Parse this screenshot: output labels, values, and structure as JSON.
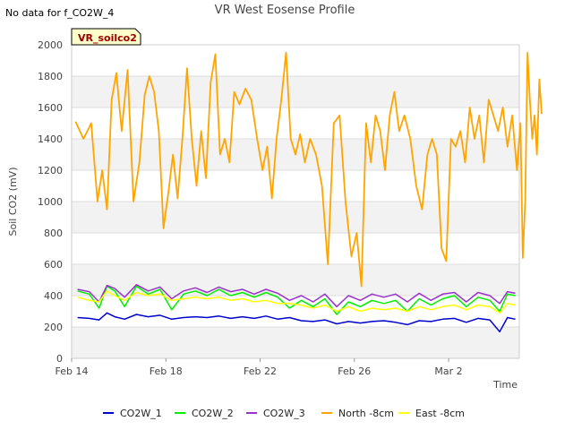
{
  "header": {
    "no_data_note": "No data for f_CO2W_4",
    "title": "VR West Eosense Profile"
  },
  "site_label": "VR_soilco2",
  "chart_data": {
    "type": "line",
    "title": "VR West Eosense Profile",
    "xlabel": "Time",
    "ylabel": "Soil CO2 (mV)",
    "xlim": [
      "2024-02-14",
      "2024-03-04"
    ],
    "ylim": [
      0,
      2000
    ],
    "x_ticks": [
      "Feb 14",
      "Feb 18",
      "Feb 22",
      "Feb 26",
      "Mar 2"
    ],
    "y_ticks": [
      0,
      200,
      400,
      600,
      800,
      1000,
      1200,
      1400,
      1600,
      1800,
      2000
    ],
    "grid": true,
    "legend_position": "bottom",
    "series": [
      {
        "name": "CO2W_1",
        "color": "#0000cc",
        "points": [
          [
            "2024-02-14",
            260
          ],
          [
            "2024-02-14",
            255
          ],
          [
            "2024-02-15",
            245
          ],
          [
            "2024-02-15",
            290
          ],
          [
            "2024-02-15",
            265
          ],
          [
            "2024-02-16",
            250
          ],
          [
            "2024-02-16",
            280
          ],
          [
            "2024-02-17",
            265
          ],
          [
            "2024-02-17",
            275
          ],
          [
            "2024-02-18",
            250
          ],
          [
            "2024-02-18",
            260
          ],
          [
            "2024-02-19",
            265
          ],
          [
            "2024-02-19",
            260
          ],
          [
            "2024-02-20",
            270
          ],
          [
            "2024-02-20",
            255
          ],
          [
            "2024-02-21",
            265
          ],
          [
            "2024-02-21",
            255
          ],
          [
            "2024-02-22",
            270
          ],
          [
            "2024-02-22",
            250
          ],
          [
            "2024-02-23",
            260
          ],
          [
            "2024-02-23",
            240
          ],
          [
            "2024-02-24",
            235
          ],
          [
            "2024-02-24",
            245
          ],
          [
            "2024-02-25",
            220
          ],
          [
            "2024-02-25",
            235
          ],
          [
            "2024-02-26",
            225
          ],
          [
            "2024-02-26",
            235
          ],
          [
            "2024-02-27",
            240
          ],
          [
            "2024-02-27",
            230
          ],
          [
            "2024-02-28",
            215
          ],
          [
            "2024-02-28",
            240
          ],
          [
            "2024-02-29",
            235
          ],
          [
            "2024-02-29",
            250
          ],
          [
            "2024-03-01",
            255
          ],
          [
            "2024-03-01",
            230
          ],
          [
            "2024-03-02",
            255
          ],
          [
            "2024-03-02",
            245
          ],
          [
            "2024-03-03",
            170
          ],
          [
            "2024-03-03",
            260
          ],
          [
            "2024-03-03",
            250
          ]
        ]
      },
      {
        "name": "CO2W_2",
        "color": "#00ee00",
        "points": [
          [
            "2024-02-14",
            430
          ],
          [
            "2024-02-14",
            410
          ],
          [
            "2024-02-15",
            320
          ],
          [
            "2024-02-15",
            460
          ],
          [
            "2024-02-15",
            430
          ],
          [
            "2024-02-16",
            330
          ],
          [
            "2024-02-16",
            460
          ],
          [
            "2024-02-17",
            410
          ],
          [
            "2024-02-17",
            440
          ],
          [
            "2024-02-18",
            310
          ],
          [
            "2024-02-18",
            410
          ],
          [
            "2024-02-19",
            430
          ],
          [
            "2024-02-19",
            400
          ],
          [
            "2024-02-20",
            440
          ],
          [
            "2024-02-20",
            400
          ],
          [
            "2024-02-21",
            420
          ],
          [
            "2024-02-21",
            390
          ],
          [
            "2024-02-22",
            420
          ],
          [
            "2024-02-22",
            390
          ],
          [
            "2024-02-23",
            320
          ],
          [
            "2024-02-23",
            370
          ],
          [
            "2024-02-24",
            330
          ],
          [
            "2024-02-24",
            380
          ],
          [
            "2024-02-25",
            280
          ],
          [
            "2024-02-25",
            360
          ],
          [
            "2024-02-26",
            330
          ],
          [
            "2024-02-26",
            370
          ],
          [
            "2024-02-27",
            350
          ],
          [
            "2024-02-27",
            370
          ],
          [
            "2024-02-28",
            300
          ],
          [
            "2024-02-28",
            380
          ],
          [
            "2024-02-29",
            340
          ],
          [
            "2024-02-29",
            380
          ],
          [
            "2024-03-01",
            400
          ],
          [
            "2024-03-01",
            330
          ],
          [
            "2024-03-02",
            390
          ],
          [
            "2024-03-02",
            370
          ],
          [
            "2024-03-03",
            300
          ],
          [
            "2024-03-03",
            410
          ],
          [
            "2024-03-03",
            400
          ]
        ]
      },
      {
        "name": "CO2W_3",
        "color": "#9933cc",
        "points": [
          [
            "2024-02-14",
            440
          ],
          [
            "2024-02-14",
            425
          ],
          [
            "2024-02-15",
            360
          ],
          [
            "2024-02-15",
            465
          ],
          [
            "2024-02-15",
            445
          ],
          [
            "2024-02-16",
            390
          ],
          [
            "2024-02-16",
            470
          ],
          [
            "2024-02-17",
            430
          ],
          [
            "2024-02-17",
            455
          ],
          [
            "2024-02-18",
            380
          ],
          [
            "2024-02-18",
            430
          ],
          [
            "2024-02-19",
            450
          ],
          [
            "2024-02-19",
            420
          ],
          [
            "2024-02-20",
            455
          ],
          [
            "2024-02-20",
            425
          ],
          [
            "2024-02-21",
            440
          ],
          [
            "2024-02-21",
            410
          ],
          [
            "2024-02-22",
            440
          ],
          [
            "2024-02-22",
            415
          ],
          [
            "2024-02-23",
            370
          ],
          [
            "2024-02-23",
            400
          ],
          [
            "2024-02-24",
            360
          ],
          [
            "2024-02-24",
            410
          ],
          [
            "2024-02-25",
            330
          ],
          [
            "2024-02-25",
            400
          ],
          [
            "2024-02-26",
            370
          ],
          [
            "2024-02-26",
            410
          ],
          [
            "2024-02-27",
            390
          ],
          [
            "2024-02-27",
            410
          ],
          [
            "2024-02-28",
            360
          ],
          [
            "2024-02-28",
            415
          ],
          [
            "2024-02-29",
            370
          ],
          [
            "2024-02-29",
            410
          ],
          [
            "2024-03-01",
            420
          ],
          [
            "2024-03-01",
            360
          ],
          [
            "2024-03-02",
            420
          ],
          [
            "2024-03-02",
            400
          ],
          [
            "2024-03-03",
            350
          ],
          [
            "2024-03-03",
            425
          ],
          [
            "2024-03-03",
            415
          ]
        ]
      },
      {
        "name": "North -8cm",
        "color": "#ffa500",
        "points": [
          [
            "2024-02-14",
            1510
          ],
          [
            "2024-02-14",
            1400
          ],
          [
            "2024-02-14",
            1500
          ],
          [
            "2024-02-15",
            1000
          ],
          [
            "2024-02-15",
            1200
          ],
          [
            "2024-02-15",
            950
          ],
          [
            "2024-02-15",
            1650
          ],
          [
            "2024-02-15",
            1820
          ],
          [
            "2024-02-16",
            1450
          ],
          [
            "2024-02-16",
            1840
          ],
          [
            "2024-02-16",
            1000
          ],
          [
            "2024-02-16",
            1250
          ],
          [
            "2024-02-17",
            1680
          ],
          [
            "2024-02-17",
            1800
          ],
          [
            "2024-02-17",
            1700
          ],
          [
            "2024-02-17",
            1450
          ],
          [
            "2024-02-17",
            830
          ],
          [
            "2024-02-18",
            1050
          ],
          [
            "2024-02-18",
            1300
          ],
          [
            "2024-02-18",
            1020
          ],
          [
            "2024-02-18",
            1400
          ],
          [
            "2024-02-18",
            1850
          ],
          [
            "2024-02-19",
            1400
          ],
          [
            "2024-02-19",
            1100
          ],
          [
            "2024-02-19",
            1450
          ],
          [
            "2024-02-19",
            1150
          ],
          [
            "2024-02-19",
            1760
          ],
          [
            "2024-02-20",
            1940
          ],
          [
            "2024-02-20",
            1300
          ],
          [
            "2024-02-20",
            1400
          ],
          [
            "2024-02-20",
            1250
          ],
          [
            "2024-02-20",
            1700
          ],
          [
            "2024-02-21",
            1620
          ],
          [
            "2024-02-21",
            1720
          ],
          [
            "2024-02-21",
            1650
          ],
          [
            "2024-02-21",
            1400
          ],
          [
            "2024-02-22",
            1200
          ],
          [
            "2024-02-22",
            1350
          ],
          [
            "2024-02-22",
            1020
          ],
          [
            "2024-02-22",
            1400
          ],
          [
            "2024-02-22",
            1650
          ],
          [
            "2024-02-23",
            1950
          ],
          [
            "2024-02-23",
            1400
          ],
          [
            "2024-02-23",
            1300
          ],
          [
            "2024-02-23",
            1430
          ],
          [
            "2024-02-23",
            1250
          ],
          [
            "2024-02-24",
            1400
          ],
          [
            "2024-02-24",
            1300
          ],
          [
            "2024-02-24",
            1100
          ],
          [
            "2024-02-24",
            600
          ],
          [
            "2024-02-25",
            1500
          ],
          [
            "2024-02-25",
            1550
          ],
          [
            "2024-02-25",
            1000
          ],
          [
            "2024-02-25",
            650
          ],
          [
            "2024-02-26",
            800
          ],
          [
            "2024-02-26",
            460
          ],
          [
            "2024-02-26",
            1500
          ],
          [
            "2024-02-26",
            1250
          ],
          [
            "2024-02-26",
            1550
          ],
          [
            "2024-02-27",
            1450
          ],
          [
            "2024-02-27",
            1200
          ],
          [
            "2024-02-27",
            1550
          ],
          [
            "2024-02-27",
            1700
          ],
          [
            "2024-02-27",
            1450
          ],
          [
            "2024-02-28",
            1550
          ],
          [
            "2024-02-28",
            1400
          ],
          [
            "2024-02-28",
            1100
          ],
          [
            "2024-02-28",
            950
          ],
          [
            "2024-02-29",
            1300
          ],
          [
            "2024-02-29",
            1400
          ],
          [
            "2024-02-29",
            1300
          ],
          [
            "2024-02-29",
            700
          ],
          [
            "2024-02-29",
            620
          ],
          [
            "2024-03-01",
            1400
          ],
          [
            "2024-03-01",
            1350
          ],
          [
            "2024-03-01",
            1450
          ],
          [
            "2024-03-01",
            1250
          ],
          [
            "2024-03-01",
            1600
          ],
          [
            "2024-03-02",
            1400
          ],
          [
            "2024-03-02",
            1550
          ],
          [
            "2024-03-02",
            1250
          ],
          [
            "2024-03-02",
            1650
          ],
          [
            "2024-03-02",
            1550
          ],
          [
            "2024-03-03",
            1450
          ],
          [
            "2024-03-03",
            1600
          ],
          [
            "2024-03-03",
            1350
          ],
          [
            "2024-03-03",
            1550
          ],
          [
            "2024-03-03",
            1200
          ],
          [
            "2024-03-04",
            1500
          ],
          [
            "2024-03-04",
            640
          ],
          [
            "2024-03-04",
            1000
          ],
          [
            "2024-03-04",
            1950
          ],
          [
            "2024-03-04",
            1650
          ],
          [
            "2024-03-04",
            1400
          ],
          [
            "2024-03-04",
            1550
          ],
          [
            "2024-03-04",
            1300
          ],
          [
            "2024-03-04",
            1780
          ],
          [
            "2024-03-04",
            1560
          ]
        ]
      },
      {
        "name": "East -8cm",
        "color": "#ffff00",
        "points": [
          [
            "2024-02-14",
            390
          ],
          [
            "2024-02-14",
            370
          ],
          [
            "2024-02-15",
            360
          ],
          [
            "2024-02-15",
            430
          ],
          [
            "2024-02-15",
            400
          ],
          [
            "2024-02-16",
            370
          ],
          [
            "2024-02-16",
            420
          ],
          [
            "2024-02-17",
            400
          ],
          [
            "2024-02-17",
            410
          ],
          [
            "2024-02-18",
            370
          ],
          [
            "2024-02-18",
            380
          ],
          [
            "2024-02-19",
            390
          ],
          [
            "2024-02-19",
            380
          ],
          [
            "2024-02-20",
            390
          ],
          [
            "2024-02-20",
            370
          ],
          [
            "2024-02-21",
            380
          ],
          [
            "2024-02-21",
            360
          ],
          [
            "2024-02-22",
            370
          ],
          [
            "2024-02-22",
            350
          ],
          [
            "2024-02-23",
            350
          ],
          [
            "2024-02-23",
            340
          ],
          [
            "2024-02-24",
            320
          ],
          [
            "2024-02-24",
            340
          ],
          [
            "2024-02-25",
            300
          ],
          [
            "2024-02-25",
            330
          ],
          [
            "2024-02-26",
            300
          ],
          [
            "2024-02-26",
            320
          ],
          [
            "2024-02-27",
            310
          ],
          [
            "2024-02-27",
            320
          ],
          [
            "2024-02-28",
            300
          ],
          [
            "2024-02-28",
            330
          ],
          [
            "2024-02-29",
            310
          ],
          [
            "2024-02-29",
            330
          ],
          [
            "2024-03-01",
            340
          ],
          [
            "2024-03-01",
            310
          ],
          [
            "2024-03-02",
            340
          ],
          [
            "2024-03-02",
            330
          ],
          [
            "2024-03-03",
            290
          ],
          [
            "2024-03-03",
            350
          ],
          [
            "2024-03-03",
            340
          ]
        ]
      }
    ]
  }
}
